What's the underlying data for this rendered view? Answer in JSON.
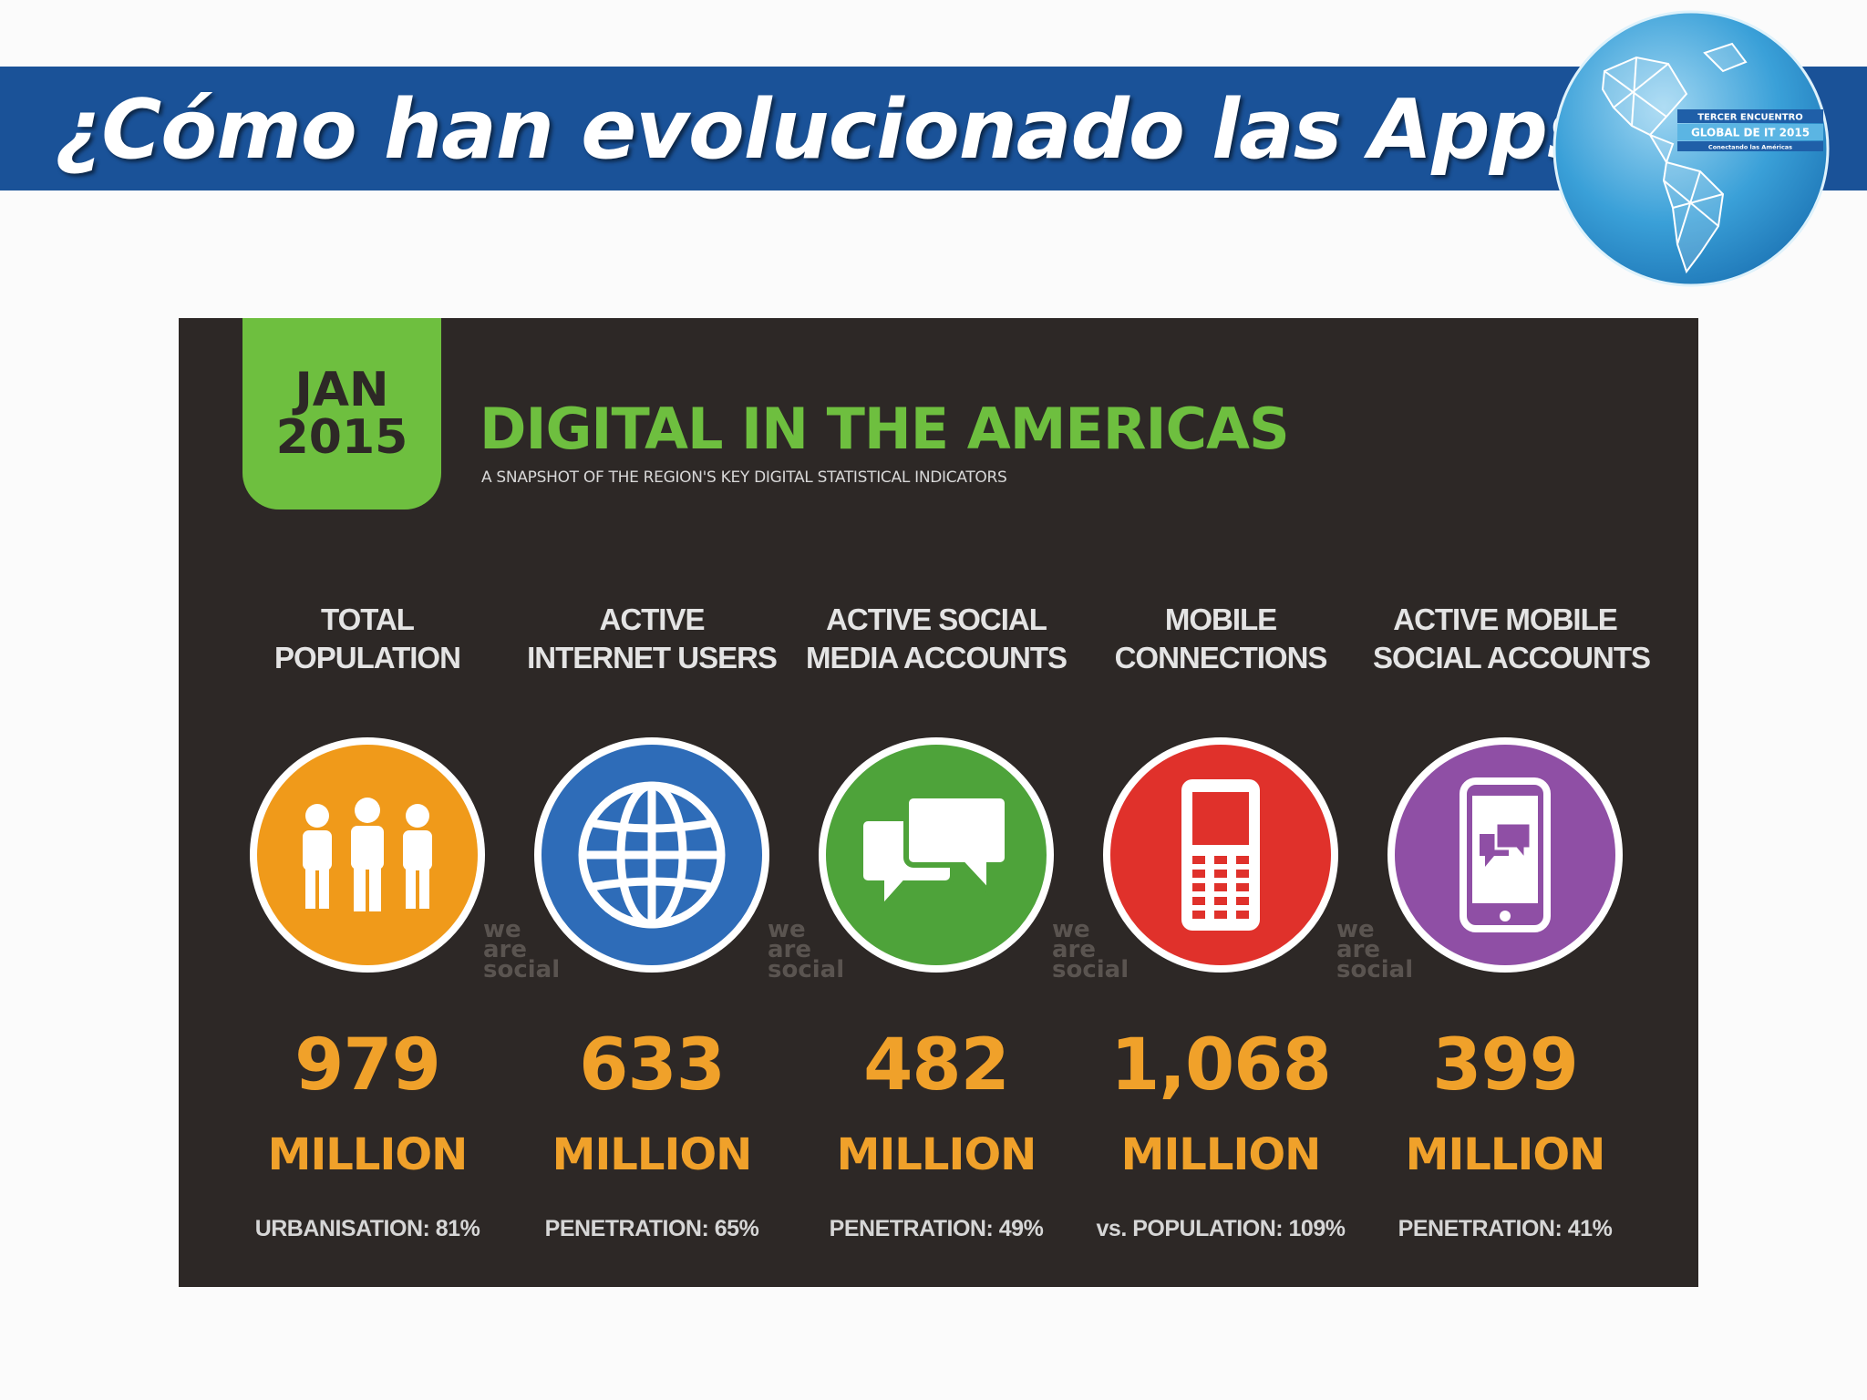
{
  "slide": {
    "title": "¿Cómo han evolucionado las Apps?"
  },
  "logo": {
    "line1": "TERCER ENCUENTRO",
    "line2": "GLOBAL DE IT 2015",
    "line3": "Conectando las Américas"
  },
  "infographic": {
    "date_month": "JAN",
    "date_year": "2015",
    "title": "DIGITAL IN THE AMERICAS",
    "subtitle": "A SNAPSHOT OF THE REGION'S KEY DIGITAL STATISTICAL INDICATORS",
    "watermark": [
      "we",
      "are",
      "social"
    ],
    "stats": [
      {
        "label_line1": "TOTAL",
        "label_line2": "POPULATION",
        "value": "979",
        "unit": "MILLION",
        "note": "URBANISATION: 81%",
        "icon": "people-icon",
        "color": "#f09a1a"
      },
      {
        "label_line1": "ACTIVE",
        "label_line2": "INTERNET USERS",
        "value": "633",
        "unit": "MILLION",
        "note": "PENETRATION: 65%",
        "icon": "globe-icon",
        "color": "#2e6cb8"
      },
      {
        "label_line1": "ACTIVE SOCIAL",
        "label_line2": "MEDIA ACCOUNTS",
        "value": "482",
        "unit": "MILLION",
        "note": "PENETRATION: 49%",
        "icon": "chat-bubbles-icon",
        "color": "#4ea33a"
      },
      {
        "label_line1": "MOBILE",
        "label_line2": "CONNECTIONS",
        "value": "1,068",
        "unit": "MILLION",
        "note": "vs. POPULATION: 109%",
        "icon": "mobile-phone-icon",
        "color": "#e0312b"
      },
      {
        "label_line1": "ACTIVE MOBILE",
        "label_line2": "SOCIAL ACCOUNTS",
        "value": "399",
        "unit": "MILLION",
        "note": "PENETRATION: 41%",
        "icon": "smartphone-chat-icon",
        "color": "#8f4fa5"
      }
    ]
  }
}
